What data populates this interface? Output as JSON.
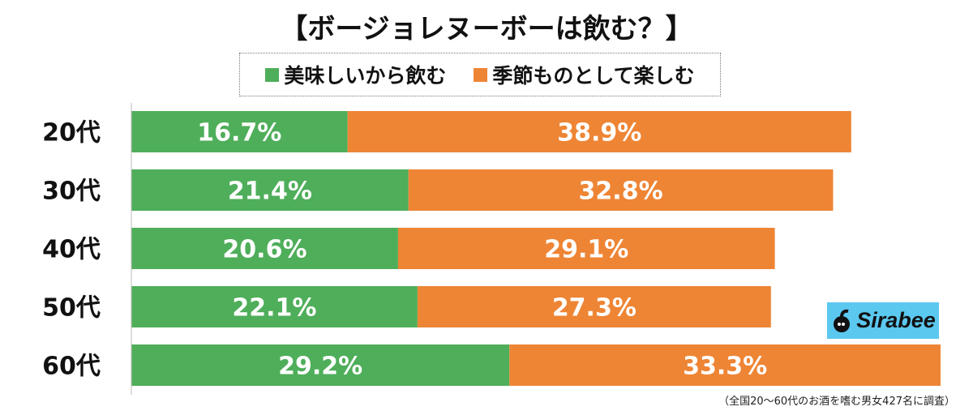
{
  "chart_data": {
    "type": "bar",
    "orientation": "horizontal",
    "stacked": true,
    "title": "【ボージョレヌーボーは飲む？】",
    "categories": [
      "20代",
      "30代",
      "40代",
      "50代",
      "60代"
    ],
    "series": [
      {
        "name": "美味しいから飲む",
        "color": "#4fae5a",
        "values": [
          16.7,
          21.4,
          20.6,
          22.1,
          29.2
        ],
        "labels": [
          "16.7%",
          "21.4%",
          "20.6%",
          "22.1%",
          "29.2%"
        ]
      },
      {
        "name": "季節ものとして楽しむ",
        "color": "#ee8535",
        "values": [
          38.9,
          32.8,
          29.1,
          27.3,
          33.3
        ],
        "labels": [
          "38.9%",
          "32.8%",
          "29.1%",
          "27.3%",
          "33.3%"
        ]
      }
    ],
    "xlim": [
      0,
      62.5
    ],
    "grid": false,
    "legend_position": "top"
  },
  "footnote": "（全国20〜60代のお酒を嗜む男女427名に調査）",
  "logo": {
    "text": "Sirabee",
    "background": "#5bc8f0"
  }
}
